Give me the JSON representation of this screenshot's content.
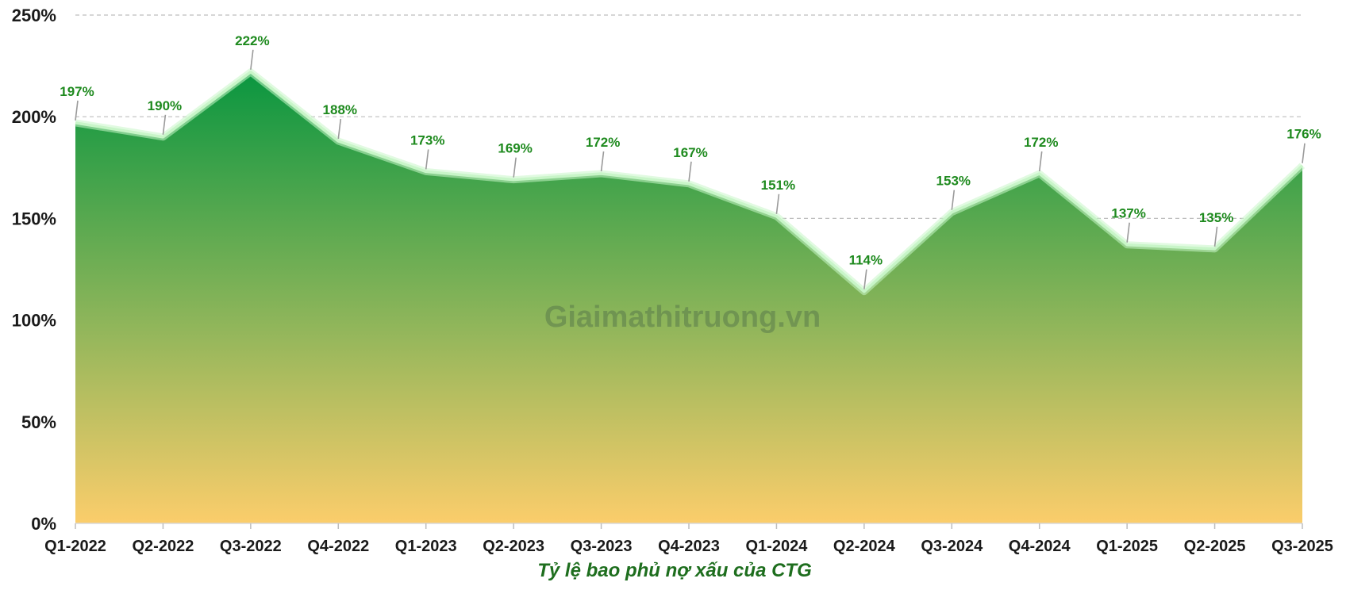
{
  "colors": {
    "area_top": "#0a9640",
    "area_mid": "#8db55a",
    "area_bottom": "#fbcd6b",
    "line_glow": "#c8f5c8",
    "label": "#1e8a1e",
    "title": "#1e6e1e",
    "grid": "#bdbdbd",
    "leader": "#9a9a9a"
  },
  "chart_data": {
    "type": "area",
    "title": "Tỷ lệ bao phủ nợ xấu của CTG",
    "xlabel": "",
    "ylabel": "",
    "categories": [
      "Q1-2022",
      "Q2-2022",
      "Q3-2022",
      "Q4-2022",
      "Q1-2023",
      "Q2-2023",
      "Q3-2023",
      "Q4-2023",
      "Q1-2024",
      "Q2-2024",
      "Q3-2024",
      "Q4-2024",
      "Q1-2025",
      "Q2-2025",
      "Q3-2025"
    ],
    "values": [
      197,
      190,
      222,
      188,
      173,
      169,
      172,
      167,
      151,
      114,
      153,
      172,
      137,
      135,
      176
    ],
    "value_labels": [
      "197%",
      "190%",
      "222%",
      "188%",
      "173%",
      "169%",
      "172%",
      "167%",
      "151%",
      "114%",
      "153%",
      "172%",
      "137%",
      "135%",
      "176%"
    ],
    "y_ticks": [
      "0%",
      "50%",
      "100%",
      "150%",
      "200%",
      "250%"
    ],
    "ylim": [
      0,
      250
    ],
    "grid": true,
    "grid_style": "dashed",
    "legend": "none",
    "watermark": "Giaimathitruong.vn"
  }
}
